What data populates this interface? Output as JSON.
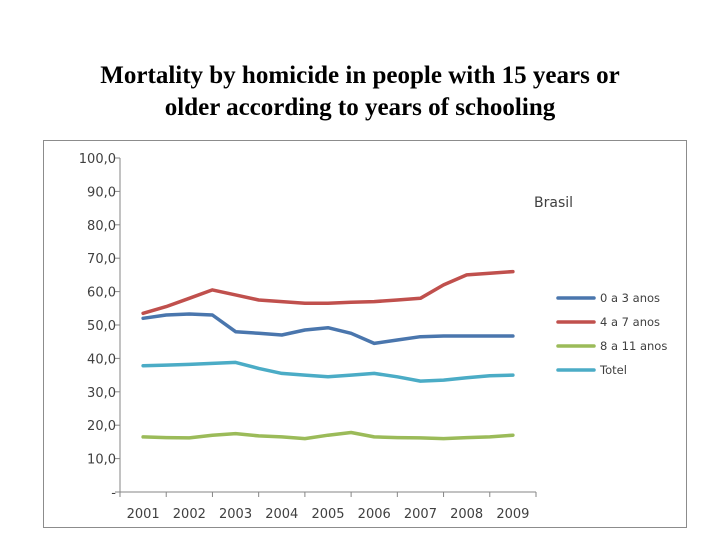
{
  "slide": {
    "title_line1": "Mortality by homicide in people with 15 years or",
    "title_line2": "older according to years of schooling"
  },
  "chart_data": {
    "type": "line",
    "title": "Brasil",
    "categories": [
      "2001",
      "2002",
      "2003",
      "2004",
      "2005",
      "2006",
      "2007",
      "2008",
      "2009"
    ],
    "ylim": [
      0,
      100
    ],
    "ytick_labels": [
      "-",
      "10,0",
      "20,0",
      "30,0",
      "40,0",
      "50,0",
      "60,0",
      "70,0",
      "80,0",
      "90,0",
      "100,0"
    ],
    "grid": false,
    "legend_position": "right",
    "series": [
      {
        "name": "0 a 3 anos",
        "color": "#4a76ad",
        "x": [
          0,
          0.5,
          1,
          1.5,
          2,
          2.5,
          3,
          3.5,
          4,
          4.5,
          5,
          5.5,
          6,
          6.5,
          7,
          7.5,
          8
        ],
        "values": [
          52.0,
          53.0,
          53.3,
          53.0,
          48.0,
          47.5,
          47.0,
          48.5,
          49.2,
          47.5,
          44.5,
          45.5,
          46.5,
          46.7,
          46.7,
          46.7,
          46.7
        ]
      },
      {
        "name": "4 a 7 anos",
        "color": "#c0504d",
        "x": [
          0,
          0.5,
          1,
          1.5,
          2,
          2.5,
          3,
          3.5,
          4,
          4.5,
          5,
          5.5,
          6,
          6.5,
          7,
          7.5,
          8
        ],
        "values": [
          53.5,
          55.5,
          58.0,
          60.5,
          59.0,
          57.5,
          57.0,
          56.5,
          56.5,
          56.8,
          57.0,
          57.5,
          58.0,
          62.0,
          65.0,
          65.5,
          66.0
        ]
      },
      {
        "name": "8 a 11 anos",
        "color": "#9bbb59",
        "x": [
          0,
          0.5,
          1,
          1.5,
          2,
          2.5,
          3,
          3.5,
          4,
          4.5,
          5,
          5.5,
          6,
          6.5,
          7,
          7.5,
          8
        ],
        "values": [
          16.5,
          16.3,
          16.2,
          17.0,
          17.5,
          16.8,
          16.5,
          16.0,
          17.0,
          17.8,
          16.5,
          16.3,
          16.2,
          16.0,
          16.3,
          16.5,
          17.0
        ]
      },
      {
        "name": "Totel",
        "color": "#4bacc6",
        "x": [
          0,
          0.5,
          1,
          1.5,
          2,
          2.5,
          3,
          3.5,
          4,
          4.5,
          5,
          5.5,
          6,
          6.5,
          7,
          7.5,
          8
        ],
        "values": [
          37.8,
          38.0,
          38.2,
          38.5,
          38.8,
          37.0,
          35.5,
          35.0,
          34.5,
          35.0,
          35.5,
          34.5,
          33.2,
          33.5,
          34.2,
          34.8,
          35.0
        ]
      }
    ]
  }
}
